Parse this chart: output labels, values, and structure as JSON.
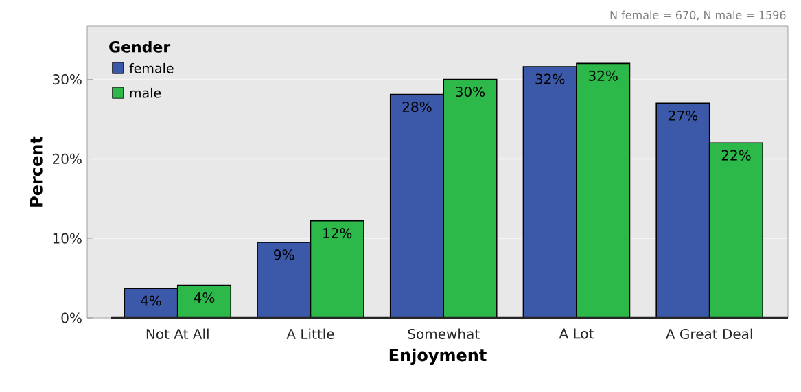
{
  "chart_data": {
    "type": "bar",
    "xlabel": "Enjoyment",
    "ylabel": "Percent",
    "legend_title": "Gender",
    "categories": [
      "Not At All",
      "A Little",
      "Somewhat",
      "A Lot",
      "A Great Deal"
    ],
    "series": [
      {
        "name": "female",
        "color": "#3c58a8",
        "values": [
          3.7,
          9.5,
          28.1,
          31.6,
          27.0
        ],
        "value_labels": [
          "4%",
          "9%",
          "28%",
          "32%",
          "27%"
        ]
      },
      {
        "name": "male",
        "color": "#2db84a",
        "values": [
          4.1,
          12.2,
          30.0,
          32.0,
          22.0
        ],
        "value_labels": [
          "4%",
          "12%",
          "30%",
          "32%",
          "22%"
        ]
      }
    ],
    "ylim": [
      0,
      36.7
    ],
    "yticks": [
      {
        "value": 0,
        "label": "0%"
      },
      {
        "value": 10,
        "label": "10%"
      },
      {
        "value": 20,
        "label": "20%"
      },
      {
        "value": 30,
        "label": "30%"
      }
    ],
    "grid": "y",
    "legend": "top left",
    "annotations": [
      "N female = 670, N male = 1596"
    ]
  }
}
